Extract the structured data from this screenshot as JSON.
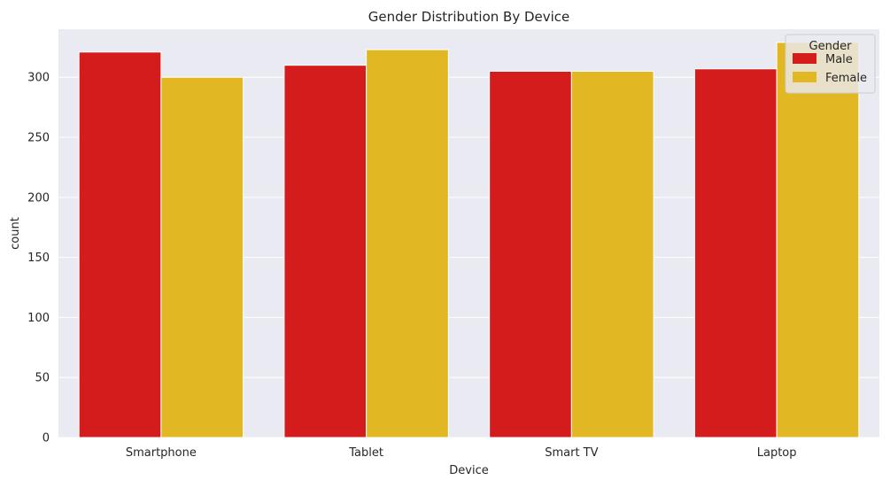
{
  "chart_data": {
    "type": "bar",
    "title": "Gender Distribution By Device",
    "xlabel": "Device",
    "ylabel": "count",
    "categories": [
      "Smartphone",
      "Tablet",
      "Smart TV",
      "Laptop"
    ],
    "series": [
      {
        "name": "Male",
        "color": "#d41c1c",
        "values": [
          321,
          310,
          305,
          307
        ]
      },
      {
        "name": "Female",
        "color": "#e1b823",
        "values": [
          300,
          323,
          305,
          329
        ]
      }
    ],
    "ylim": [
      0,
      340
    ],
    "yticks": [
      0,
      50,
      100,
      150,
      200,
      250,
      300
    ],
    "grid": true,
    "legend": {
      "title": "Gender",
      "placement": "top-right"
    },
    "background": "#eaeaf2"
  }
}
